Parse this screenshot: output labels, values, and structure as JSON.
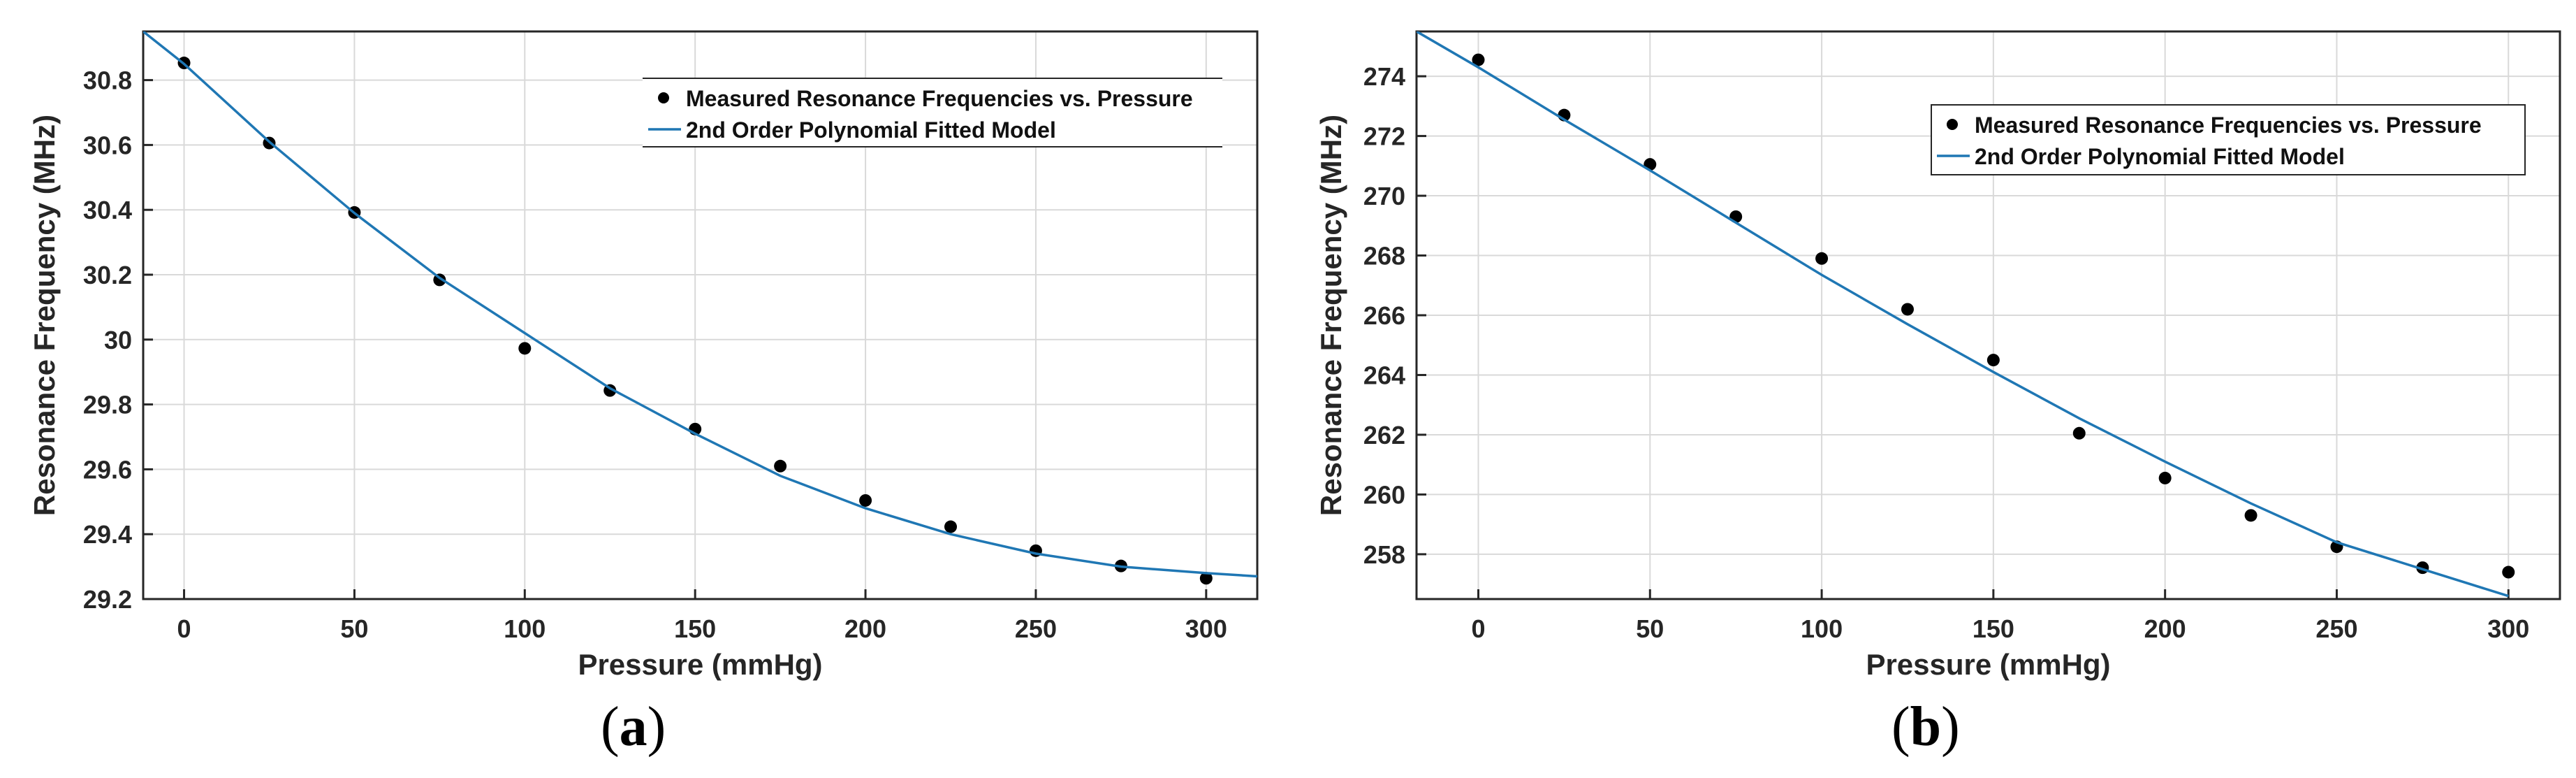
{
  "chart_data": [
    {
      "panel": "(a)",
      "panel_letter": "a",
      "type": "scatter",
      "title": "",
      "xlabel": "Pressure (mmHg)",
      "ylabel": "Resonance Frequency (MHz)",
      "xlim": [
        -12,
        315
      ],
      "ylim": [
        29.2,
        30.95
      ],
      "xticks": [
        0,
        50,
        100,
        150,
        200,
        250,
        300
      ],
      "xtick_labels": [
        "0",
        "50",
        "100",
        "150",
        "200",
        "250",
        "300"
      ],
      "yticks": [
        29.2,
        29.4,
        29.6,
        29.8,
        30.0,
        30.2,
        30.4,
        30.6,
        30.8
      ],
      "ytick_labels": [
        "29.2",
        "29.4",
        "29.6",
        "29.8",
        "30",
        "30.2",
        "30.4",
        "30.6",
        "30.8"
      ],
      "grid": true,
      "legend_position": "top-right",
      "series": [
        {
          "name": "Measured Resonance Frequencies vs. Pressure",
          "kind": "scatter",
          "color": "#000000",
          "x": [
            0,
            25,
            50,
            75,
            100,
            125,
            150,
            175,
            200,
            225,
            250,
            275,
            300
          ],
          "y": [
            30.853,
            30.606,
            30.392,
            30.184,
            29.973,
            29.843,
            29.724,
            29.61,
            29.504,
            29.423,
            29.349,
            29.302,
            29.264
          ]
        },
        {
          "name": "2nd Order Polynomial Fitted Model",
          "kind": "line",
          "color": "#1f77b4",
          "x": [
            -12,
            0,
            25,
            50,
            75,
            100,
            125,
            150,
            175,
            200,
            225,
            250,
            275,
            300,
            315
          ],
          "y": [
            30.95,
            30.85,
            30.61,
            30.39,
            30.19,
            30.02,
            29.85,
            29.71,
            29.58,
            29.48,
            29.4,
            29.34,
            29.3,
            29.28,
            29.27
          ]
        }
      ]
    },
    {
      "panel": "(b)",
      "panel_letter": "b",
      "type": "scatter",
      "title": "",
      "xlabel": "Pressure (mmHg)",
      "ylabel": "Resonance Frequency (MHz)",
      "xlim": [
        -18,
        315
      ],
      "ylim": [
        256.5,
        275.5
      ],
      "xticks": [
        0,
        50,
        100,
        150,
        200,
        250,
        300
      ],
      "xtick_labels": [
        "0",
        "50",
        "100",
        "150",
        "200",
        "250",
        "300"
      ],
      "yticks": [
        258,
        260,
        262,
        264,
        266,
        268,
        270,
        272,
        274
      ],
      "ytick_labels": [
        "258",
        "260",
        "262",
        "264",
        "266",
        "268",
        "270",
        "272",
        "274"
      ],
      "grid": true,
      "legend_position": "top-right",
      "series": [
        {
          "name": "Measured Resonance Frequencies vs. Pressure",
          "kind": "scatter",
          "color": "#000000",
          "x": [
            0,
            25,
            50,
            75,
            100,
            125,
            150,
            175,
            200,
            225,
            250,
            275,
            300
          ],
          "y": [
            274.55,
            272.7,
            271.05,
            269.3,
            267.9,
            266.2,
            264.5,
            262.05,
            260.55,
            259.3,
            258.25,
            257.55,
            257.4
          ]
        },
        {
          "name": "2nd Order Polynomial Fitted Model",
          "kind": "line",
          "color": "#1f77b4",
          "x": [
            -18,
            0,
            25,
            50,
            75,
            100,
            125,
            150,
            175,
            200,
            225,
            250,
            275,
            300
          ],
          "y": [
            275.5,
            274.3,
            272.55,
            270.85,
            269.1,
            267.35,
            265.7,
            264.1,
            262.55,
            261.1,
            259.7,
            258.4,
            257.5,
            256.6
          ]
        }
      ]
    }
  ]
}
